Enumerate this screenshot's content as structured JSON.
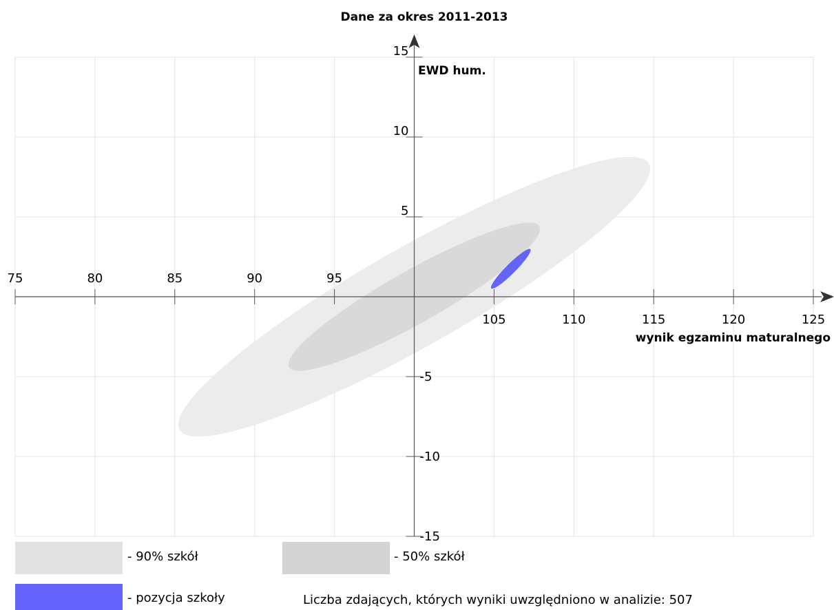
{
  "chart_data": {
    "type": "scatter",
    "title": "Dane za okres 2011-2013",
    "xlabel": "wynik egzaminu maturalnego",
    "ylabel": "EWD hum.",
    "xlim": [
      75,
      125
    ],
    "ylim": [
      -15,
      15
    ],
    "x_ticks": [
      75,
      80,
      85,
      90,
      95,
      105,
      110,
      115,
      120,
      125
    ],
    "y_ticks": [
      15,
      10,
      5,
      -5,
      -10,
      -15
    ],
    "x_origin": 100,
    "grid": true,
    "regions": [
      {
        "name": "90% szkół",
        "type": "ellipse",
        "color": "#ececec",
        "x_range": [
          85,
          115
        ],
        "y_range": [
          -8.5,
          8.5
        ]
      },
      {
        "name": "50% szkół",
        "type": "ellipse",
        "color": "#d9d9d9",
        "x_range": [
          92,
          108
        ],
        "y_range": [
          -4.5,
          4.5
        ]
      },
      {
        "name": "pozycja szkoły",
        "type": "ellipse",
        "color": "#6464f8",
        "x_range": [
          104.8,
          107.3
        ],
        "y_range": [
          0.5,
          3
        ]
      }
    ]
  },
  "legend": {
    "items": [
      {
        "label": "- 90% szkół",
        "color": "#e2e2e2"
      },
      {
        "label": "- 50% szkół",
        "color": "#d3d3d3"
      },
      {
        "label": "- pozycja szkoły",
        "color": "#6464fc"
      }
    ]
  },
  "note": "Liczba zdających, których wyniki uwzględniono w analizie: 507"
}
